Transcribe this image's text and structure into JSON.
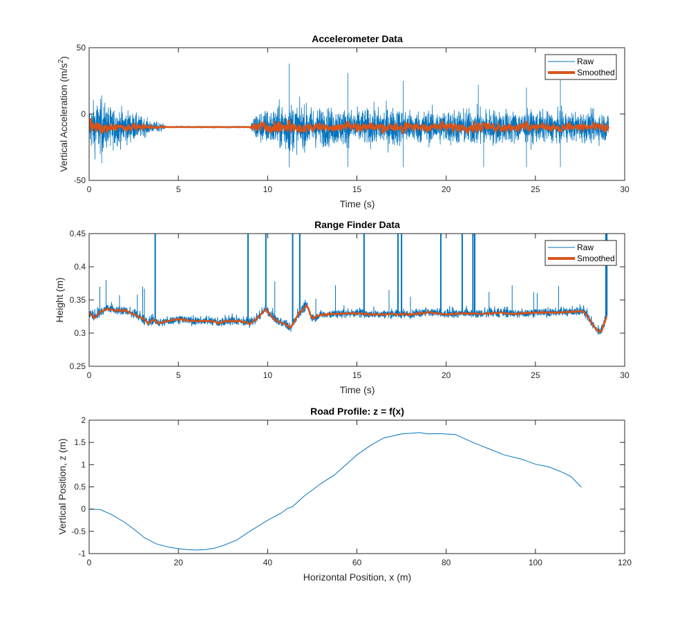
{
  "colors": {
    "raw": "#0072BD",
    "smoothed": "#D95319",
    "axis": "#262626"
  },
  "chart_data": [
    {
      "type": "line",
      "title": "Accelerometer Data",
      "xlabel": "Time (s)",
      "ylabel": "Vertical Acceleration (m/s",
      "ylabel_sup": "2",
      "ylabel_close": ")",
      "xlim": [
        0,
        30
      ],
      "ylim": [
        -50,
        50
      ],
      "xticks": [
        0,
        5,
        10,
        15,
        20,
        25,
        30
      ],
      "xtick_labels": [
        "0",
        "5",
        "10",
        "15",
        "20",
        "25",
        "30"
      ],
      "yticks": [
        -50,
        0,
        50
      ],
      "ytick_labels": [
        "-50",
        "0",
        "50"
      ],
      "legend": {
        "position": "top-right",
        "entries": [
          "Raw",
          "Smoothed"
        ]
      },
      "series": [
        {
          "name": "Raw",
          "baseline": -9.8,
          "x_range": [
            0,
            29.1
          ],
          "noise_envelope": [
            [
              0,
              18
            ],
            [
              0.5,
              22
            ],
            [
              1.2,
              16
            ],
            [
              2.0,
              14
            ],
            [
              3.0,
              8
            ],
            [
              3.6,
              4
            ],
            [
              4.0,
              5
            ],
            [
              4.3,
              0.6
            ],
            [
              9.0,
              0.6
            ],
            [
              9.3,
              12
            ],
            [
              10.5,
              16
            ],
            [
              11.0,
              22
            ],
            [
              11.5,
              18
            ],
            [
              12.5,
              16
            ],
            [
              14.0,
              15
            ],
            [
              15.0,
              14
            ],
            [
              17.0,
              16
            ],
            [
              18.0,
              13
            ],
            [
              20.0,
              14
            ],
            [
              22.0,
              15
            ],
            [
              24.0,
              13
            ],
            [
              26.0,
              12
            ],
            [
              28.0,
              12
            ],
            [
              29.1,
              12
            ]
          ],
          "spikes": [
            [
              0.7,
              -37
            ],
            [
              0.7,
              14
            ],
            [
              1.2,
              -24
            ],
            [
              11.2,
              38
            ],
            [
              11.2,
              -40
            ],
            [
              14.5,
              31
            ],
            [
              14.5,
              -40
            ],
            [
              17.6,
              25
            ],
            [
              17.6,
              -40
            ],
            [
              21.8,
              22
            ],
            [
              22.1,
              -40
            ],
            [
              24.5,
              20
            ],
            [
              24.5,
              -40
            ],
            [
              26.4,
              27
            ],
            [
              26.4,
              -40
            ]
          ]
        },
        {
          "name": "Smoothed",
          "baseline": -9.8,
          "x_range": [
            0,
            29.1
          ],
          "bumps": [
            [
              0.05,
              -4
            ],
            [
              0.7,
              -14
            ],
            [
              11.2,
              -5
            ],
            [
              11.9,
              -13
            ],
            [
              14.5,
              -6
            ],
            [
              17.6,
              -14
            ],
            [
              19.8,
              -6
            ],
            [
              22.1,
              -7
            ],
            [
              24.5,
              -6
            ],
            [
              26.4,
              -13
            ],
            [
              28.9,
              -13
            ]
          ]
        }
      ]
    },
    {
      "type": "line",
      "title": "Range Finder Data",
      "xlabel": "Time (s)",
      "ylabel": "Height (m)",
      "xlim": [
        0,
        30
      ],
      "ylim": [
        0.25,
        0.45
      ],
      "xticks": [
        0,
        5,
        10,
        15,
        20,
        25,
        30
      ],
      "xtick_labels": [
        "0",
        "5",
        "10",
        "15",
        "20",
        "25",
        "30"
      ],
      "yticks": [
        0.25,
        0.3,
        0.35,
        0.4,
        0.45
      ],
      "ytick_labels": [
        "0.25",
        "0.3",
        "0.35",
        "0.4",
        "0.45"
      ],
      "legend": {
        "position": "top-right",
        "entries": [
          "Raw",
          "Smoothed"
        ]
      },
      "series": [
        {
          "name": "Smoothed",
          "x": [
            0,
            0.3,
            0.6,
            1.0,
            1.5,
            2.0,
            2.5,
            3.0,
            3.3,
            3.6,
            3.9,
            4.4,
            5.0,
            6.0,
            7.0,
            7.2,
            8.0,
            8.7,
            9.0,
            9.4,
            9.9,
            10.3,
            11.0,
            11.3,
            11.7,
            12.2,
            12.5,
            13.0,
            14.0,
            15.0,
            16.0,
            17.0,
            18.0,
            19.0,
            20.0,
            21.0,
            22.0,
            23.0,
            24.0,
            25.0,
            26.0,
            27.0,
            27.7,
            28.0,
            28.4,
            28.7,
            29.0
          ],
          "y": [
            0.33,
            0.323,
            0.331,
            0.337,
            0.334,
            0.334,
            0.328,
            0.322,
            0.315,
            0.32,
            0.315,
            0.318,
            0.321,
            0.318,
            0.318,
            0.315,
            0.319,
            0.317,
            0.314,
            0.322,
            0.336,
            0.322,
            0.313,
            0.308,
            0.328,
            0.342,
            0.322,
            0.328,
            0.329,
            0.33,
            0.328,
            0.329,
            0.328,
            0.331,
            0.328,
            0.33,
            0.329,
            0.331,
            0.329,
            0.331,
            0.331,
            0.332,
            0.333,
            0.322,
            0.305,
            0.302,
            0.326
          ]
        },
        {
          "name": "Raw",
          "noise": 0.006,
          "spikes": [
            [
              0.6,
              0.37
            ],
            [
              0.95,
              0.38
            ],
            [
              1.7,
              0.357
            ],
            [
              2.7,
              0.358
            ],
            [
              3.0,
              0.37
            ],
            [
              3.1,
              0.367
            ],
            [
              3.7,
              0.45
            ],
            [
              8.9,
              0.45
            ],
            [
              9.9,
              0.45
            ],
            [
              10.4,
              0.378
            ],
            [
              11.4,
              0.45
            ],
            [
              11.8,
              0.45
            ],
            [
              12.1,
              0.35
            ],
            [
              12.7,
              0.352
            ],
            [
              13.8,
              0.372
            ],
            [
              15.4,
              0.45
            ],
            [
              16.8,
              0.365
            ],
            [
              17.3,
              0.45
            ],
            [
              17.5,
              0.45
            ],
            [
              18.0,
              0.355
            ],
            [
              19.7,
              0.45
            ],
            [
              20.9,
              0.45
            ],
            [
              21.5,
              0.45
            ],
            [
              21.6,
              0.45
            ],
            [
              22.4,
              0.362
            ],
            [
              23.7,
              0.372
            ],
            [
              24.9,
              0.362
            ],
            [
              25.1,
              0.36
            ],
            [
              26.3,
              0.371
            ],
            [
              29.0,
              0.45
            ],
            [
              28.95,
              0.45
            ]
          ]
        }
      ]
    },
    {
      "type": "line",
      "title": "Road Profile: z = f(x)",
      "xlabel": "Horizontal Position, x (m)",
      "ylabel": "Vertical Position, z (m)",
      "xlim": [
        0,
        120
      ],
      "ylim": [
        -1,
        2
      ],
      "xticks": [
        0,
        20,
        40,
        60,
        80,
        100,
        120
      ],
      "xtick_labels": [
        "0",
        "20",
        "40",
        "60",
        "80",
        "100",
        "120"
      ],
      "yticks": [
        -1,
        -0.5,
        0,
        0.5,
        1,
        1.5,
        2
      ],
      "ytick_labels": [
        "-1",
        "-0.5",
        "0",
        "0.5",
        "1",
        "1.5",
        "2"
      ],
      "series": [
        {
          "name": "z",
          "x": [
            0,
            2.5,
            5,
            8,
            10,
            12.5,
            15,
            18,
            20,
            22,
            24,
            26,
            28,
            30,
            33,
            36,
            40,
            43,
            44.5,
            45.5,
            48,
            52,
            55,
            57,
            60,
            63,
            66,
            70,
            74,
            76,
            78,
            82,
            86,
            90,
            93,
            97,
            100,
            103,
            106,
            108,
            110.3
          ],
          "y": [
            0,
            -0.01,
            -0.12,
            -0.3,
            -0.45,
            -0.65,
            -0.78,
            -0.86,
            -0.89,
            -0.91,
            -0.92,
            -0.91,
            -0.88,
            -0.82,
            -0.7,
            -0.5,
            -0.25,
            -0.09,
            0.02,
            0.05,
            0.28,
            0.58,
            0.77,
            0.95,
            1.22,
            1.43,
            1.6,
            1.69,
            1.72,
            1.69,
            1.7,
            1.68,
            1.5,
            1.34,
            1.22,
            1.12,
            1.01,
            0.95,
            0.83,
            0.73,
            0.49
          ]
        }
      ]
    }
  ]
}
